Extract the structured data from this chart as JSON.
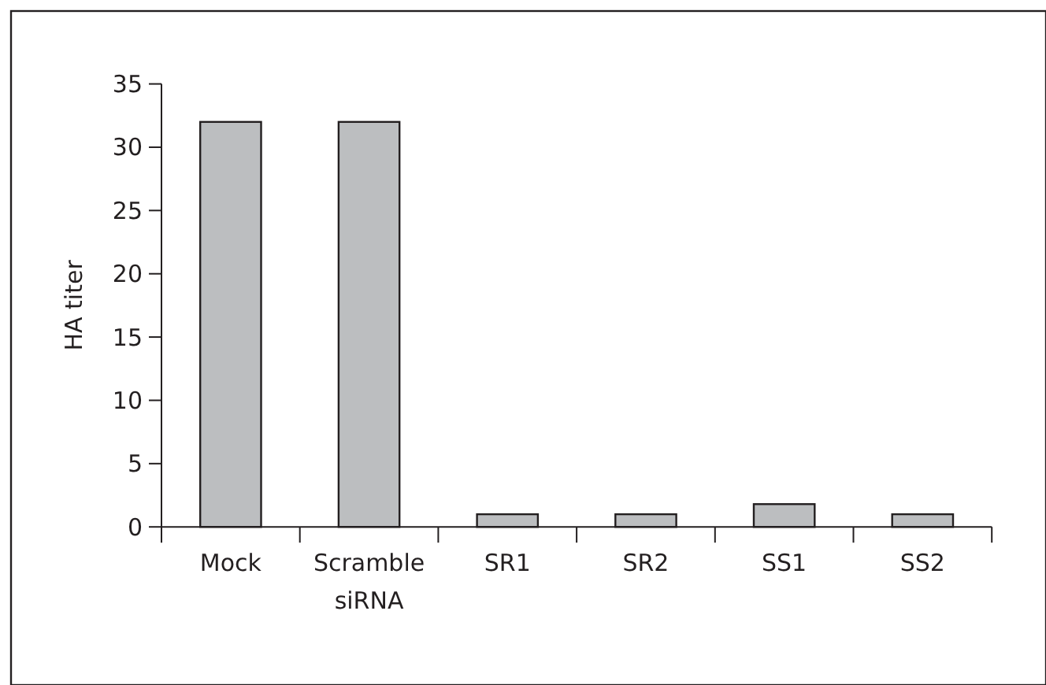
{
  "chart_data": {
    "type": "bar",
    "ylabel": "HA titer",
    "categories": [
      "Mock",
      "Scramble siRNA",
      "SR1",
      "SR2",
      "SS1",
      "SS2"
    ],
    "values": [
      32,
      32,
      1,
      1,
      1.8,
      1
    ],
    "color": "#bcbec0",
    "ylim": [
      0,
      35
    ],
    "yticks": [
      0,
      5,
      10,
      15,
      20,
      25,
      30,
      35
    ],
    "grid": false
  }
}
